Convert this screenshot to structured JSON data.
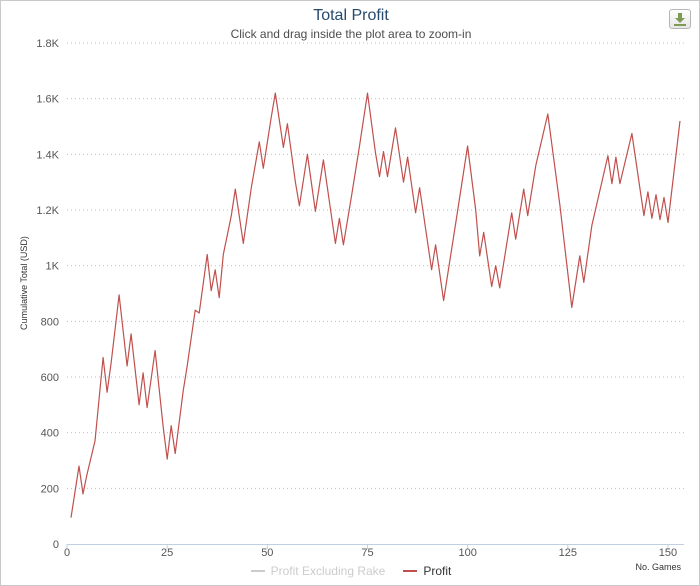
{
  "header": {
    "title": "Total Profit",
    "subtitle": "Click and drag inside the plot area to zoom-in"
  },
  "export_button": {
    "icon": "download-icon"
  },
  "colors": {
    "profit": "#c0504d",
    "profit_excluding_rake": "#cccccc",
    "title": "#274b6d",
    "grid": "#c0c0c0"
  },
  "legend": {
    "items": [
      {
        "label": "Profit Excluding Rake",
        "color": "#cccccc",
        "active": false
      },
      {
        "label": "Profit",
        "color": "#c0504d",
        "active": true
      }
    ],
    "placement": "bottom-center"
  },
  "chart_data": {
    "type": "line",
    "title": "Total Profit",
    "subtitle": "Click and drag inside the plot area to zoom-in",
    "xlabel": "No. Games",
    "ylabel": "Cumulative Total (USD)",
    "xlim": [
      0,
      154
    ],
    "ylim": [
      0,
      1800
    ],
    "x_ticks": [
      {
        "value": 0,
        "label": "0"
      },
      {
        "value": 25,
        "label": "25"
      },
      {
        "value": 50,
        "label": "50"
      },
      {
        "value": 75,
        "label": "75"
      },
      {
        "value": 100,
        "label": "100"
      },
      {
        "value": 125,
        "label": "125"
      },
      {
        "value": 150,
        "label": "150"
      }
    ],
    "y_ticks": [
      {
        "value": 0,
        "label": "0"
      },
      {
        "value": 200,
        "label": "200"
      },
      {
        "value": 400,
        "label": "400"
      },
      {
        "value": 600,
        "label": "600"
      },
      {
        "value": 800,
        "label": "800"
      },
      {
        "value": 1000,
        "label": "1K"
      },
      {
        "value": 1200,
        "label": "1.2K"
      },
      {
        "value": 1400,
        "label": "1.4K"
      },
      {
        "value": 1600,
        "label": "1.6K"
      },
      {
        "value": 1800,
        "label": "1.8K"
      }
    ],
    "grid": "horizontal dotted",
    "series": [
      {
        "name": "Profit",
        "visible": true,
        "color": "#c0504d",
        "points": [
          [
            1,
            95
          ],
          [
            3,
            280
          ],
          [
            4,
            180
          ],
          [
            5,
            250
          ],
          [
            7,
            370
          ],
          [
            9,
            670
          ],
          [
            10,
            545
          ],
          [
            11,
            650
          ],
          [
            13,
            895
          ],
          [
            15,
            640
          ],
          [
            16,
            755
          ],
          [
            18,
            500
          ],
          [
            19,
            615
          ],
          [
            20,
            490
          ],
          [
            22,
            695
          ],
          [
            24,
            420
          ],
          [
            25,
            305
          ],
          [
            26,
            425
          ],
          [
            27,
            325
          ],
          [
            29,
            550
          ],
          [
            30,
            640
          ],
          [
            32,
            840
          ],
          [
            33,
            830
          ],
          [
            34,
            935
          ],
          [
            35,
            1040
          ],
          [
            36,
            910
          ],
          [
            37,
            985
          ],
          [
            38,
            885
          ],
          [
            39,
            1040
          ],
          [
            41,
            1180
          ],
          [
            42,
            1275
          ],
          [
            44,
            1080
          ],
          [
            46,
            1280
          ],
          [
            48,
            1445
          ],
          [
            49,
            1350
          ],
          [
            51,
            1535
          ],
          [
            52,
            1620
          ],
          [
            54,
            1425
          ],
          [
            55,
            1510
          ],
          [
            57,
            1300
          ],
          [
            58,
            1215
          ],
          [
            60,
            1400
          ],
          [
            62,
            1195
          ],
          [
            64,
            1380
          ],
          [
            67,
            1080
          ],
          [
            68,
            1170
          ],
          [
            69,
            1075
          ],
          [
            71,
            1250
          ],
          [
            73,
            1430
          ],
          [
            75,
            1620
          ],
          [
            77,
            1405
          ],
          [
            78,
            1320
          ],
          [
            79,
            1410
          ],
          [
            80,
            1320
          ],
          [
            82,
            1495
          ],
          [
            84,
            1300
          ],
          [
            85,
            1390
          ],
          [
            87,
            1190
          ],
          [
            88,
            1280
          ],
          [
            91,
            985
          ],
          [
            92,
            1075
          ],
          [
            94,
            875
          ],
          [
            97,
            1150
          ],
          [
            100,
            1430
          ],
          [
            102,
            1200
          ],
          [
            103,
            1035
          ],
          [
            104,
            1120
          ],
          [
            106,
            925
          ],
          [
            107,
            1000
          ],
          [
            108,
            920
          ],
          [
            111,
            1190
          ],
          [
            112,
            1095
          ],
          [
            114,
            1275
          ],
          [
            115,
            1180
          ],
          [
            117,
            1360
          ],
          [
            120,
            1545
          ],
          [
            123,
            1220
          ],
          [
            126,
            850
          ],
          [
            128,
            1035
          ],
          [
            129,
            940
          ],
          [
            131,
            1145
          ],
          [
            133,
            1270
          ],
          [
            135,
            1395
          ],
          [
            136,
            1295
          ],
          [
            137,
            1390
          ],
          [
            138,
            1295
          ],
          [
            141,
            1475
          ],
          [
            144,
            1180
          ],
          [
            145,
            1265
          ],
          [
            146,
            1170
          ],
          [
            147,
            1255
          ],
          [
            148,
            1165
          ],
          [
            149,
            1245
          ],
          [
            150,
            1155
          ],
          [
            153,
            1520
          ]
        ]
      },
      {
        "name": "Profit Excluding Rake",
        "visible": false,
        "color": "#cccccc",
        "points": []
      }
    ]
  }
}
